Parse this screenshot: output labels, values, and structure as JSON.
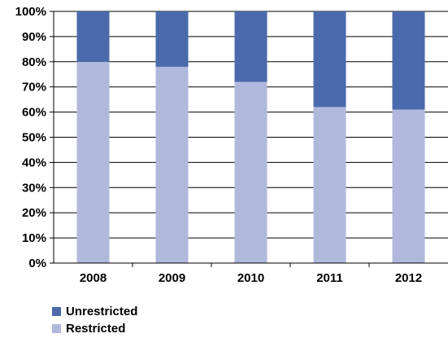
{
  "colors": {
    "unrestricted": "#4a6aab",
    "restricted": "#b0b9dc",
    "grid": "#000000"
  },
  "chart_data": {
    "type": "bar",
    "stacked": true,
    "categories": [
      "2008",
      "2009",
      "2010",
      "2011",
      "2012"
    ],
    "series": [
      {
        "name": "Restricted",
        "values": [
          80,
          78,
          72,
          62,
          61
        ]
      },
      {
        "name": "Unrestricted",
        "values": [
          20,
          22,
          28,
          38,
          39
        ]
      }
    ],
    "ylim": [
      0,
      100
    ],
    "yticks": [
      "0%",
      "10%",
      "20%",
      "30%",
      "40%",
      "50%",
      "60%",
      "70%",
      "80%",
      "90%",
      "100%"
    ],
    "grid": true,
    "legend": {
      "position": "bottom-left",
      "entries": [
        "Unrestricted",
        "Restricted"
      ]
    }
  }
}
